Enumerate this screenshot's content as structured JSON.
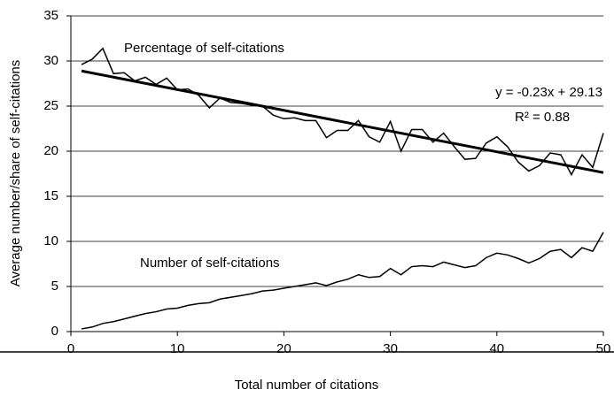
{
  "chart_data": {
    "type": "line",
    "x_label": "Total number of citations",
    "y_label": "Average number/share of self-citations",
    "x": [
      1,
      2,
      3,
      4,
      5,
      6,
      7,
      8,
      9,
      10,
      11,
      12,
      13,
      14,
      15,
      16,
      17,
      18,
      19,
      20,
      21,
      22,
      23,
      24,
      25,
      26,
      27,
      28,
      29,
      30,
      31,
      32,
      33,
      34,
      35,
      36,
      37,
      38,
      39,
      40,
      41,
      42,
      43,
      44,
      45,
      46,
      47,
      48,
      49,
      50
    ],
    "series": [
      {
        "name": "Percentage of self-citations",
        "color": "#000000",
        "values": [
          29.6,
          30.2,
          31.4,
          28.6,
          28.7,
          27.8,
          28.2,
          27.4,
          28.1,
          26.8,
          26.9,
          26.2,
          24.8,
          25.9,
          25.4,
          25.3,
          25.1,
          25.0,
          24.0,
          23.6,
          23.7,
          23.4,
          23.4,
          21.5,
          22.3,
          22.3,
          23.4,
          21.6,
          21.0,
          23.3,
          20.0,
          22.4,
          22.4,
          21.0,
          22.0,
          20.5,
          19.1,
          19.2,
          20.9,
          21.6,
          20.5,
          18.8,
          17.8,
          18.4,
          19.8,
          19.6,
          17.4,
          19.6,
          18.2,
          22.0
        ]
      },
      {
        "name": "Number of self-citations",
        "color": "#000000",
        "values": [
          0.3,
          0.5,
          0.9,
          1.1,
          1.4,
          1.7,
          2.0,
          2.2,
          2.5,
          2.6,
          2.9,
          3.1,
          3.2,
          3.6,
          3.8,
          4.0,
          4.2,
          4.5,
          4.6,
          4.8,
          5.0,
          5.2,
          5.4,
          5.1,
          5.5,
          5.8,
          6.3,
          6.0,
          6.1,
          7.0,
          6.3,
          7.2,
          7.3,
          7.2,
          7.7,
          7.4,
          7.1,
          7.3,
          8.2,
          8.7,
          8.5,
          8.1,
          7.6,
          8.1,
          8.9,
          9.1,
          8.2,
          9.3,
          8.9,
          11.0
        ]
      }
    ],
    "trendline": {
      "x": [
        1,
        50
      ],
      "values": [
        28.9,
        17.63
      ],
      "equation": "y = -0.23x + 29.13",
      "r_squared": "R² = 0.88"
    },
    "xlim": [
      0,
      50
    ],
    "xticks": [
      0,
      10,
      20,
      30,
      40,
      50
    ],
    "ylim": [
      0,
      35
    ],
    "yticks": [
      0,
      5,
      10,
      15,
      20,
      25,
      30,
      35
    ],
    "grid": true
  }
}
